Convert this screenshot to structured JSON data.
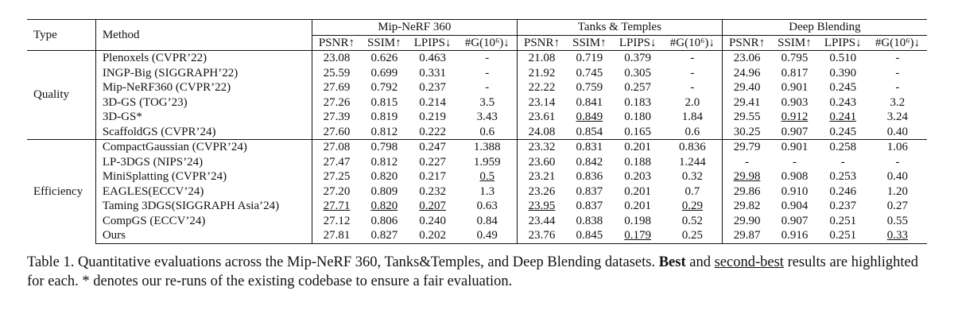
{
  "table": {
    "headers": {
      "type": "Type",
      "method": "Method",
      "datasets": [
        "Mip-NeRF 360",
        "Tanks & Temples",
        "Deep Blending"
      ],
      "metrics": [
        "PSNR↑",
        "SSIM↑",
        "LPIPS↓",
        "#G(10⁶)↓"
      ]
    },
    "groups": [
      {
        "type": "Quality",
        "rows": [
          {
            "method": "Plenoxels (CVPR’22)",
            "cells": [
              {
                "v": "23.08"
              },
              {
                "v": "0.626"
              },
              {
                "v": "0.463"
              },
              {
                "v": "-"
              },
              {
                "v": "21.08"
              },
              {
                "v": "0.719"
              },
              {
                "v": "0.379"
              },
              {
                "v": "-"
              },
              {
                "v": "23.06"
              },
              {
                "v": "0.795"
              },
              {
                "v": "0.510"
              },
              {
                "v": "-"
              }
            ]
          },
          {
            "method": "INGP-Big (SIGGRAPH’22)",
            "cells": [
              {
                "v": "25.59"
              },
              {
                "v": "0.699"
              },
              {
                "v": "0.331"
              },
              {
                "v": "-"
              },
              {
                "v": "21.92"
              },
              {
                "v": "0.745"
              },
              {
                "v": "0.305"
              },
              {
                "v": "-"
              },
              {
                "v": "24.96"
              },
              {
                "v": "0.817"
              },
              {
                "v": "0.390"
              },
              {
                "v": "-"
              }
            ]
          },
          {
            "method": "Mip-NeRF360 (CVPR’22)",
            "cells": [
              {
                "v": "27.69"
              },
              {
                "v": "0.792"
              },
              {
                "v": "0.237"
              },
              {
                "v": "-"
              },
              {
                "v": "22.22"
              },
              {
                "v": "0.759"
              },
              {
                "v": "0.257"
              },
              {
                "v": "-"
              },
              {
                "v": "29.40"
              },
              {
                "v": "0.901"
              },
              {
                "v": "0.245"
              },
              {
                "v": "-"
              }
            ]
          },
          {
            "method": "3D-GS (TOG’23)",
            "cells": [
              {
                "v": "27.26"
              },
              {
                "v": "0.815"
              },
              {
                "v": "0.214"
              },
              {
                "v": "3.5"
              },
              {
                "v": "23.14"
              },
              {
                "v": "0.841"
              },
              {
                "v": "0.183"
              },
              {
                "v": "2.0"
              },
              {
                "v": "29.41"
              },
              {
                "v": "0.903"
              },
              {
                "v": "0.243"
              },
              {
                "v": "3.2"
              }
            ]
          },
          {
            "method": "3D-GS*",
            "cells": [
              {
                "v": "27.39"
              },
              {
                "v": "0.819"
              },
              {
                "v": "0.219"
              },
              {
                "v": "3.43"
              },
              {
                "v": "23.61"
              },
              {
                "v": "0.849",
                "u": true
              },
              {
                "v": "0.180"
              },
              {
                "v": "1.84"
              },
              {
                "v": "29.55"
              },
              {
                "v": "0.912",
                "u": true
              },
              {
                "v": "0.241",
                "u": true
              },
              {
                "v": "3.24"
              }
            ]
          },
          {
            "method": "ScaffoldGS (CVPR’24)",
            "cells": [
              {
                "v": "27.60"
              },
              {
                "v": "0.812"
              },
              {
                "v": "0.222"
              },
              {
                "v": "0.6"
              },
              {
                "v": "24.08",
                "b": true
              },
              {
                "v": "0.854",
                "b": true
              },
              {
                "v": "0.165",
                "b": true
              },
              {
                "v": "0.6"
              },
              {
                "v": "30.25",
                "b": true
              },
              {
                "v": "0.907"
              },
              {
                "v": "0.245"
              },
              {
                "v": "0.40"
              }
            ]
          }
        ]
      },
      {
        "type": "Efficiency",
        "rows": [
          {
            "method": "CompactGaussian (CVPR’24)",
            "cells": [
              {
                "v": "27.08"
              },
              {
                "v": "0.798"
              },
              {
                "v": "0.247"
              },
              {
                "v": "1.388"
              },
              {
                "v": "23.32"
              },
              {
                "v": "0.831"
              },
              {
                "v": "0.201"
              },
              {
                "v": "0.836"
              },
              {
                "v": "29.79"
              },
              {
                "v": "0.901"
              },
              {
                "v": "0.258"
              },
              {
                "v": "1.06"
              }
            ]
          },
          {
            "method": "LP-3DGS (NIPS’24)",
            "cells": [
              {
                "v": "27.47"
              },
              {
                "v": "0.812"
              },
              {
                "v": "0.227"
              },
              {
                "v": "1.959"
              },
              {
                "v": "23.60"
              },
              {
                "v": "0.842"
              },
              {
                "v": "0.188"
              },
              {
                "v": "1.244"
              },
              {
                "v": "-"
              },
              {
                "v": "-"
              },
              {
                "v": "-"
              },
              {
                "v": "-"
              }
            ]
          },
          {
            "method": "MiniSplatting (CVPR’24)",
            "cells": [
              {
                "v": "27.25"
              },
              {
                "v": "0.820"
              },
              {
                "v": "0.217"
              },
              {
                "v": "0.5",
                "u": true
              },
              {
                "v": "23.21"
              },
              {
                "v": "0.836"
              },
              {
                "v": "0.203"
              },
              {
                "v": "0.32"
              },
              {
                "v": "29.98",
                "u": true
              },
              {
                "v": "0.908"
              },
              {
                "v": "0.253"
              },
              {
                "v": "0.40"
              }
            ]
          },
          {
            "method": "EAGLES(ECCV’24)",
            "cells": [
              {
                "v": "27.20"
              },
              {
                "v": "0.809"
              },
              {
                "v": "0.232"
              },
              {
                "v": "1.3"
              },
              {
                "v": "23.26"
              },
              {
                "v": "0.837"
              },
              {
                "v": "0.201"
              },
              {
                "v": "0.7"
              },
              {
                "v": "29.86"
              },
              {
                "v": "0.910"
              },
              {
                "v": "0.246"
              },
              {
                "v": "1.20"
              }
            ]
          },
          {
            "method": "Taming 3DGS(SIGGRAPH Asia’24)",
            "cells": [
              {
                "v": "27.71",
                "u": true
              },
              {
                "v": "0.820",
                "u": true
              },
              {
                "v": "0.207",
                "u": true
              },
              {
                "v": "0.63"
              },
              {
                "v": "23.95",
                "u": true
              },
              {
                "v": "0.837"
              },
              {
                "v": "0.201"
              },
              {
                "v": "0.29",
                "u": true
              },
              {
                "v": "29.82"
              },
              {
                "v": "0.904"
              },
              {
                "v": "0.237",
                "b": true
              },
              {
                "v": "0.27",
                "b": true
              }
            ]
          },
          {
            "method": "CompGS (ECCV’24)",
            "cells": [
              {
                "v": "27.12"
              },
              {
                "v": "0.806"
              },
              {
                "v": "0.240"
              },
              {
                "v": "0.84"
              },
              {
                "v": "23.44"
              },
              {
                "v": "0.838"
              },
              {
                "v": "0.198"
              },
              {
                "v": "0.52"
              },
              {
                "v": "29.90"
              },
              {
                "v": "0.907"
              },
              {
                "v": "0.251"
              },
              {
                "v": "0.55"
              }
            ]
          },
          {
            "method": "Ours",
            "method_bold": true,
            "cells": [
              {
                "v": "27.81",
                "b": true
              },
              {
                "v": "0.827",
                "b": true
              },
              {
                "v": "0.202",
                "b": true
              },
              {
                "v": "0.49",
                "b": true
              },
              {
                "v": "23.76"
              },
              {
                "v": "0.845"
              },
              {
                "v": "0.179",
                "u": true
              },
              {
                "v": "0.25",
                "b": true
              },
              {
                "v": "29.87"
              },
              {
                "v": "0.916",
                "b": true
              },
              {
                "v": "0.251"
              },
              {
                "v": "0.33",
                "u": true
              }
            ]
          }
        ]
      }
    ]
  },
  "caption": {
    "part1": "Table 1. Quantitative evaluations across the Mip-NeRF 360, Tanks&Temples, and Deep Blending datasets. ",
    "best": "Best",
    "part2": " and ",
    "second_best": "second-best",
    "part3": " results are highlighted for each. * denotes our re-runs of the existing codebase to ensure a fair evaluation."
  }
}
